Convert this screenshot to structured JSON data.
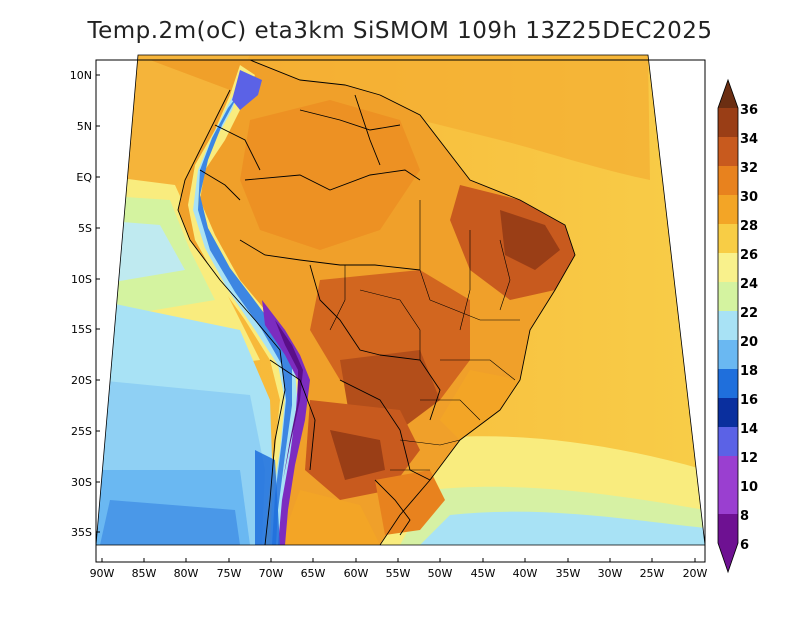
{
  "title": "Temp.2m(oC) eta3km SiSMOM 109h 13Z25DEC2025",
  "lat_ticks": [
    "10N",
    "5N",
    "EQ",
    "5S",
    "10S",
    "15S",
    "20S",
    "25S",
    "30S",
    "35S"
  ],
  "lon_ticks": [
    "90W",
    "85W",
    "80W",
    "75W",
    "70W",
    "65W",
    "60W",
    "55W",
    "50W",
    "45W",
    "40W",
    "35W",
    "30W",
    "25W",
    "20W"
  ],
  "colorbar": {
    "levels": [
      "36",
      "34",
      "32",
      "30",
      "28",
      "26",
      "24",
      "22",
      "20",
      "18",
      "16",
      "14",
      "12",
      "10",
      "8",
      "6"
    ],
    "colors": {
      "c34_36": "#6b2e12",
      "c32_34": "#9a3e16",
      "c30_32": "#c85a1e",
      "c28_30": "#e8821e",
      "c26_28": "#f3a526",
      "c24_26": "#f8cd45",
      "c22_24": "#f9f18c",
      "c20_22": "#d4f3a0",
      "c18_20": "#a8e2f5",
      "c16_18": "#6ab8f2",
      "c14_16": "#1f6fdc",
      "c12_14": "#0a2f9e",
      "c10_12": "#5b62e6",
      "c8_10": "#9a3fd0",
      "c6_8": "#6e1192"
    }
  }
}
